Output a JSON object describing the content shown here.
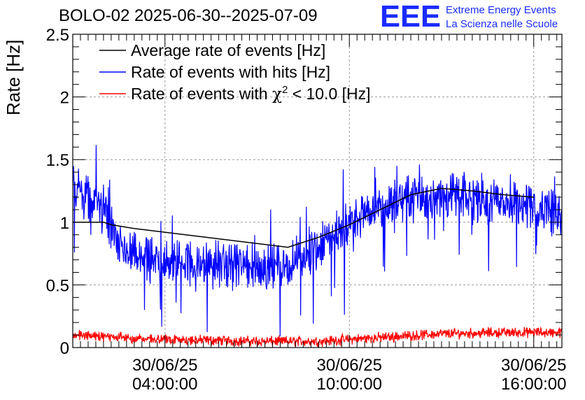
{
  "colors": {
    "average": "#000000",
    "hits": "#0000ff",
    "chi2": "#ff0000",
    "logo": "#1a2cff",
    "grid": "#9a9a9a"
  },
  "logo": {
    "mark": "EEE",
    "line1": "Extreme Energy Events",
    "line2": "La Scienza nelle Scuole"
  },
  "chart_data": {
    "type": "line",
    "title": "BOLO-02 2025-06-30--2025-07-09",
    "ylabel": "Rate [Hz]",
    "xlabel": "",
    "ylim": [
      0,
      2.5
    ],
    "xlim": [
      "30/06/25 01:00:00",
      "30/06/25 16:55:00"
    ],
    "grid": true,
    "legend_position": "top-left",
    "yticks": [
      "0",
      "0.5",
      "1",
      "1.5",
      "2",
      "2.5"
    ],
    "xticks": [
      {
        "date": "30/06/25",
        "time": "04:00:00"
      },
      {
        "date": "30/06/25",
        "time": "10:00:00"
      },
      {
        "date": "30/06/25",
        "time": "16:00:00"
      }
    ],
    "series": [
      {
        "name": "Average rate of events [Hz]",
        "color": "#000000",
        "note": "hourly averages",
        "x": [
          "01:00",
          "02:00",
          "02:15",
          "03:00",
          "04:00",
          "05:00",
          "06:00",
          "07:00",
          "08:00",
          "09:00",
          "10:00",
          "11:00",
          "12:00",
          "13:00",
          "14:00",
          "15:00",
          "16:00"
        ],
        "values": [
          1.0,
          1.0,
          0.98,
          0.95,
          0.92,
          0.89,
          0.86,
          0.83,
          0.8,
          0.88,
          0.98,
          1.1,
          1.22,
          1.27,
          1.25,
          1.22,
          1.2
        ]
      },
      {
        "name": "Rate of events with hits [Hz]",
        "color": "#0000ff",
        "note": "noisy sampled trace around the envelope below",
        "x": [
          "01:00",
          "01:30",
          "02:00",
          "02:30",
          "03:00",
          "04:00",
          "05:00",
          "06:00",
          "07:00",
          "08:00",
          "09:00",
          "10:00",
          "11:00",
          "12:00",
          "13:00",
          "14:00",
          "15:00",
          "16:00",
          "16:55"
        ],
        "values": [
          1.3,
          1.2,
          1.1,
          0.8,
          0.72,
          0.68,
          0.66,
          0.65,
          0.64,
          0.66,
          0.8,
          0.98,
          1.12,
          1.2,
          1.22,
          1.18,
          1.16,
          1.14,
          1.05
        ]
      },
      {
        "name": "Rate of events with χ² < 10.0 [Hz]",
        "color": "#ff0000",
        "note": "noisy low-level trace",
        "x": [
          "01:00",
          "03:00",
          "05:00",
          "07:00",
          "09:00",
          "11:00",
          "13:00",
          "15:00",
          "16:55"
        ],
        "values": [
          0.1,
          0.07,
          0.06,
          0.05,
          0.05,
          0.08,
          0.11,
          0.12,
          0.12
        ]
      }
    ]
  }
}
